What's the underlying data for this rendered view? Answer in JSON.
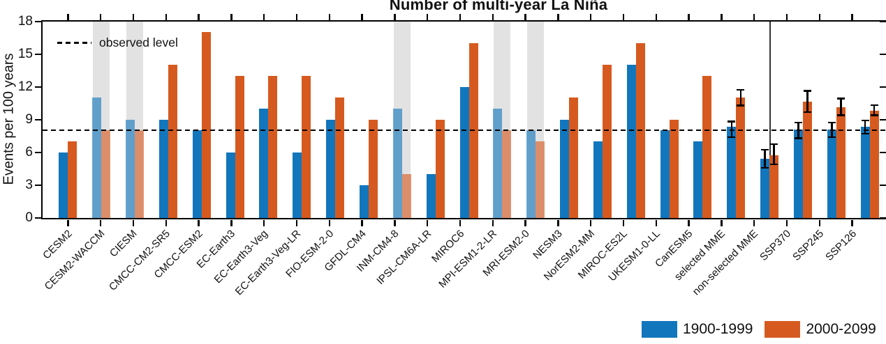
{
  "chart_data": {
    "type": "bar",
    "title": "Number of multi-year La Niña",
    "ylabel": "Events per 100 years",
    "ylim": [
      0,
      18
    ],
    "yticks": [
      0,
      3,
      6,
      9,
      12,
      15,
      18
    ],
    "observed_level": 8,
    "annotations": {
      "observed_level_label": "observed level"
    },
    "categories": [
      "CESM2",
      "CESM2-WACCM",
      "CIESM",
      "CMCC-CM2-SR5",
      "CMCC-ESM2",
      "EC-Earth3",
      "EC-Earth3-Veg",
      "EC-Earth3-Veg-LR",
      "FIO-ESM-2-0",
      "GFDL-CM4",
      "INM-CM4-8",
      "IPSL-CM6A-LR",
      "MIROC6",
      "MPI-ESM1-2-LR",
      "MRI-ESM2-0",
      "NESM3",
      "NorESM2-MM",
      "MIROC-ES2L",
      "UKESM1-0-LL",
      "CanESM5",
      "selected MME",
      "non-selected MME",
      "SSP370",
      "SSP245",
      "SSP126"
    ],
    "shaded_categories": [
      "CESM2-WACCM",
      "CIESM",
      "INM-CM4-8",
      "MPI-ESM1-2-LR",
      "MRI-ESM2-0"
    ],
    "separator_after": "non-selected MME",
    "series": [
      {
        "name": "1900-1999",
        "color": "#1276bd",
        "values": [
          6,
          11,
          9,
          9,
          8,
          6,
          10,
          6,
          9,
          3,
          10,
          4,
          12,
          10,
          8,
          9,
          7,
          14,
          8,
          7,
          8.3,
          5.4,
          8.1,
          8.1,
          8.3
        ],
        "error_low": [
          null,
          null,
          null,
          null,
          null,
          null,
          null,
          null,
          null,
          null,
          null,
          null,
          null,
          null,
          null,
          null,
          null,
          null,
          null,
          null,
          7.3,
          4.5,
          7.2,
          7.3,
          7.6
        ],
        "error_high": [
          null,
          null,
          null,
          null,
          null,
          null,
          null,
          null,
          null,
          null,
          null,
          null,
          null,
          null,
          null,
          null,
          null,
          null,
          null,
          null,
          8.9,
          6.3,
          8.8,
          8.8,
          9.0
        ]
      },
      {
        "name": "2000-2099",
        "color": "#d65a1f",
        "values": [
          7,
          8,
          8,
          14,
          17,
          13,
          13,
          13,
          11,
          9,
          4,
          9,
          16,
          8,
          7,
          11,
          14,
          16,
          9,
          13,
          11,
          5.7,
          10.6,
          10.1,
          9.8
        ],
        "error_low": [
          null,
          null,
          null,
          null,
          null,
          null,
          null,
          null,
          null,
          null,
          null,
          null,
          null,
          null,
          null,
          null,
          null,
          null,
          null,
          null,
          10.2,
          4.8,
          9.6,
          9.3,
          9.3
        ],
        "error_high": [
          null,
          null,
          null,
          null,
          null,
          null,
          null,
          null,
          null,
          null,
          null,
          null,
          null,
          null,
          null,
          null,
          null,
          null,
          null,
          null,
          11.8,
          6.8,
          11.7,
          11.0,
          10.4
        ]
      }
    ],
    "legend": {
      "position": "bottom-right",
      "entries": [
        {
          "label": "1900-1999",
          "color": "#1276bd"
        },
        {
          "label": "2000-2099",
          "color": "#d65a1f"
        }
      ]
    },
    "shaded_band_color": "#e2e2e2",
    "grid": "off"
  }
}
